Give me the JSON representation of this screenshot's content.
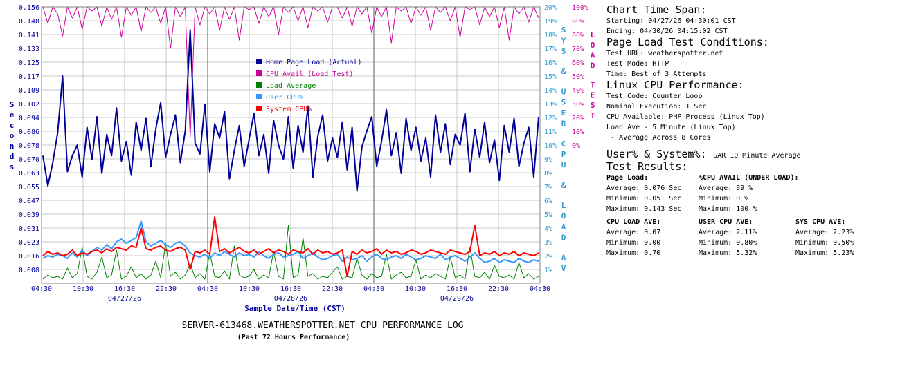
{
  "chart_data": {
    "type": "line",
    "title": "SERVER-613468.WEATHERSPOTTER.NET CPU PERFORMANCE LOG",
    "subtitle": "(Past 72 Hours Performance)",
    "xlabel": "Sample Date/Time (CST)",
    "ylabel": "Seconds",
    "y2label": "SYS & USER CPU & LOAD AV",
    "y3label": "LOAD TEST",
    "left_ticks": [
      "0.156",
      "0.148",
      "0.141",
      "0.133",
      "0.125",
      "0.117",
      "0.109",
      "0.102",
      "0.094",
      "0.086",
      "0.078",
      "0.070",
      "0.063",
      "0.055",
      "0.047",
      "0.039",
      "0.031",
      "0.023",
      "0.016",
      "0.008"
    ],
    "right_ticks": [
      "20%",
      "19%",
      "18%",
      "17%",
      "16%",
      "15%",
      "14%",
      "13%",
      "12%",
      "11%",
      "10%",
      "9%",
      "8%",
      "7%",
      "6%",
      "5%",
      "4%",
      "3%",
      "2%",
      "1%"
    ],
    "far_right_ticks": [
      "100%",
      "90%",
      "80%",
      "70%",
      "60%",
      "50%",
      "40%",
      "30%",
      "20%",
      "10%",
      "0%"
    ],
    "x_ticks": [
      "04:30",
      "10:30",
      "16:30",
      "22:30",
      "04:30",
      "10:30",
      "16:30",
      "22:30",
      "04:30",
      "10:30",
      "16:30",
      "22:30",
      "04:30"
    ],
    "date_labels": [
      "04/27/26",
      "04/28/26",
      "04/29/26"
    ],
    "ylim": [
      0,
      0.156
    ],
    "y2lim": [
      0,
      20
    ],
    "y3lim": [
      0,
      100
    ],
    "grid": true,
    "legend_position": "center",
    "series": [
      {
        "name": "Home Page Load (Actual)",
        "color": "#000099",
        "axis": "left",
        "values": [
          0.072,
          0.055,
          0.068,
          0.085,
          0.117,
          0.063,
          0.072,
          0.078,
          0.06,
          0.088,
          0.07,
          0.094,
          0.062,
          0.084,
          0.072,
          0.099,
          0.069,
          0.08,
          0.061,
          0.091,
          0.075,
          0.093,
          0.066,
          0.087,
          0.102,
          0.071,
          0.084,
          0.095,
          0.068,
          0.086,
          0.143,
          0.079,
          0.073,
          0.101,
          0.063,
          0.09,
          0.082,
          0.097,
          0.059,
          0.075,
          0.089,
          0.066,
          0.081,
          0.096,
          0.072,
          0.084,
          0.062,
          0.092,
          0.078,
          0.07,
          0.094,
          0.065,
          0.089,
          0.074,
          0.1,
          0.06,
          0.083,
          0.095,
          0.069,
          0.082,
          0.071,
          0.091,
          0.064,
          0.088,
          0.052,
          0.077,
          0.086,
          0.094,
          0.066,
          0.08,
          0.098,
          0.072,
          0.085,
          0.062,
          0.093,
          0.075,
          0.088,
          0.069,
          0.082,
          0.06,
          0.095,
          0.074,
          0.09,
          0.067,
          0.084,
          0.078,
          0.096,
          0.063,
          0.087,
          0.071,
          0.091,
          0.068,
          0.081,
          0.058,
          0.089,
          0.074,
          0.093,
          0.066,
          0.079,
          0.088,
          0.06,
          0.094
        ]
      },
      {
        "name": "CPU Avail (Load Test)",
        "color": "#cc0099",
        "axis": "far_right",
        "values": [
          100,
          88,
          100,
          95,
          79,
          100,
          92,
          100,
          84,
          100,
          97,
          100,
          86,
          100,
          91,
          100,
          78,
          100,
          94,
          100,
          82,
          100,
          96,
          100,
          88,
          100,
          70,
          100,
          93,
          100,
          5,
          100,
          87,
          100,
          95,
          100,
          83,
          100,
          91,
          100,
          76,
          100,
          98,
          100,
          88,
          100,
          93,
          100,
          80,
          100,
          96,
          100,
          90,
          100,
          85,
          100,
          97,
          100,
          89,
          100,
          100,
          92,
          100,
          86,
          100,
          95,
          100,
          81,
          100,
          93,
          100,
          74,
          100,
          97,
          100,
          88,
          100,
          94,
          100,
          83,
          100,
          96,
          100,
          90,
          100,
          78,
          100,
          98,
          100,
          87,
          100,
          93,
          100,
          85,
          100,
          76,
          100,
          95,
          100,
          89,
          100,
          92
        ]
      },
      {
        "name": "Load Average",
        "color": "#008000",
        "axis": "right",
        "values": [
          0.3,
          0.6,
          0.4,
          0.5,
          0.3,
          1.1,
          0.4,
          0.7,
          2.6,
          0.5,
          0.3,
          0.8,
          1.9,
          0.4,
          0.6,
          2.4,
          0.3,
          0.5,
          1.2,
          0.4,
          0.7,
          0.3,
          0.6,
          1.6,
          0.4,
          2.9,
          0.5,
          0.8,
          0.3,
          0.6,
          1.4,
          0.4,
          0.7,
          0.3,
          2.2,
          0.5,
          0.4,
          0.9,
          0.3,
          2.7,
          0.6,
          0.4,
          0.5,
          1.0,
          0.3,
          0.6,
          0.4,
          2.3,
          0.5,
          0.3,
          4.2,
          0.4,
          0.6,
          3.3,
          0.5,
          0.7,
          0.3,
          0.5,
          0.4,
          0.8,
          1.2,
          0.3,
          0.5,
          0.4,
          1.8,
          0.6,
          0.3,
          0.7,
          0.4,
          0.5,
          2.1,
          0.3,
          0.6,
          0.8,
          0.4,
          0.5,
          1.7,
          0.3,
          0.6,
          0.4,
          0.7,
          0.5,
          0.3,
          1.9,
          0.4,
          0.6,
          0.3,
          2.6,
          0.5,
          0.4,
          0.8,
          0.3,
          1.3,
          0.5,
          0.4,
          0.6,
          0.3,
          1.5,
          0.4,
          0.7,
          0.3,
          0.5
        ]
      },
      {
        "name": "User CPU%",
        "color": "#3399ff",
        "axis": "right",
        "values": [
          1.8,
          2.0,
          1.9,
          2.1,
          2.0,
          1.8,
          2.2,
          1.9,
          2.4,
          2.0,
          2.3,
          2.6,
          2.4,
          2.8,
          2.5,
          3.0,
          3.2,
          2.9,
          3.1,
          3.3,
          4.5,
          3.0,
          2.7,
          2.9,
          3.1,
          2.8,
          2.6,
          2.9,
          3.0,
          2.7,
          2.2,
          2.0,
          1.9,
          2.1,
          1.8,
          2.2,
          2.0,
          2.3,
          2.1,
          1.9,
          2.2,
          2.0,
          2.1,
          1.9,
          2.3,
          2.0,
          1.8,
          2.1,
          2.2,
          1.9,
          2.0,
          2.1,
          2.3,
          1.8,
          2.0,
          2.2,
          1.9,
          1.7,
          1.8,
          2.0,
          2.1,
          1.6,
          1.9,
          1.7,
          1.8,
          2.0,
          1.6,
          1.9,
          2.1,
          1.8,
          1.7,
          1.9,
          2.0,
          1.8,
          2.1,
          1.9,
          1.7,
          1.8,
          2.0,
          1.9,
          1.8,
          2.1,
          1.7,
          1.9,
          2.0,
          1.8,
          1.6,
          1.9,
          2.2,
          1.8,
          1.5,
          1.6,
          1.8,
          1.5,
          1.7,
          1.6,
          1.5,
          1.8,
          1.6,
          1.5,
          1.7,
          1.6
        ]
      },
      {
        "name": "System CPU%",
        "color": "#ff0000",
        "axis": "right",
        "values": [
          2.0,
          2.3,
          2.1,
          2.2,
          2.0,
          2.1,
          2.4,
          2.0,
          2.2,
          2.1,
          2.3,
          2.4,
          2.2,
          2.5,
          2.3,
          2.6,
          2.5,
          2.4,
          2.7,
          2.6,
          4.0,
          2.5,
          2.4,
          2.6,
          2.7,
          2.4,
          2.3,
          2.5,
          2.6,
          2.4,
          1.0,
          2.3,
          2.2,
          2.4,
          2.1,
          4.8,
          2.3,
          2.5,
          2.2,
          2.4,
          2.6,
          2.3,
          2.2,
          2.4,
          2.1,
          2.3,
          2.5,
          2.2,
          2.4,
          2.3,
          2.1,
          2.4,
          2.3,
          2.2,
          2.5,
          2.1,
          2.4,
          2.2,
          2.3,
          2.1,
          2.2,
          2.4,
          0.5,
          2.3,
          2.1,
          2.4,
          2.2,
          2.3,
          2.5,
          2.1,
          2.4,
          2.2,
          2.3,
          2.1,
          2.2,
          2.4,
          2.3,
          2.1,
          2.2,
          2.4,
          2.3,
          2.2,
          2.1,
          2.4,
          2.3,
          2.2,
          2.1,
          2.3,
          4.2,
          2.0,
          2.2,
          2.1,
          2.3,
          2.0,
          2.2,
          2.1,
          2.3,
          2.0,
          2.2,
          2.1,
          2.0,
          2.2
        ]
      }
    ]
  },
  "info": {
    "span_heading": "Chart Time Span:",
    "span_start": "Starting: 04/27/26 04:30:01 CST",
    "span_end": "Ending: 04/30/26 04:15:02 CST",
    "conditions_heading": "Page Load Test Conditions:",
    "test_url": "Test URL: weatherspotter.net",
    "test_mode": "Test Mode: HTTP",
    "test_time": "Time:  Best of 3 Attempts",
    "linux_heading": "Linux CPU Performance:",
    "test_code": "Test Code: Counter Loop",
    "nominal_exec": "Nominal Execution: 1 Sec",
    "cpu_available": "CPU Available:  PHP Process (Linux Top)",
    "load_ave": "Load Ave - 5 Minute (Linux Top)",
    "load_ave_note": " - Average Across 8 Cores",
    "usersys_heading": "User% & System%:",
    "usersys_note": "SAR 10 Minute Average",
    "results_heading": "Test Results:",
    "page_load": {
      "label": "Page Load:",
      "average": "Average: 0.076 Sec",
      "minimum": "Minimum: 0.051 Sec",
      "maximum": "Maximum: 0.143 Sec"
    },
    "cpu_avail": {
      "label": "%CPU AVAIL (UNDER LOAD):",
      "average": "Average: 89 %",
      "minimum": "Minimum: 0 %",
      "maximum": "Maximum: 100 %"
    },
    "cpu_load": {
      "label": "CPU LOAD AVE:",
      "average": "Average: 0.07",
      "minimum": "Minimum: 0.00",
      "maximum": "Maximum: 0.70"
    },
    "user_cpu": {
      "label": "USER CPU AVE:",
      "average": "Average: 2.11%",
      "minimum": "Minimum: 0.80%",
      "maximum": "Maximum: 5.32%"
    },
    "sys_cpu": {
      "label": "SYS CPU AVE:",
      "average": "Average: 2.23%",
      "minimum": "Minimum: 0.50%",
      "maximum": "Maximum: 5.23%"
    }
  }
}
